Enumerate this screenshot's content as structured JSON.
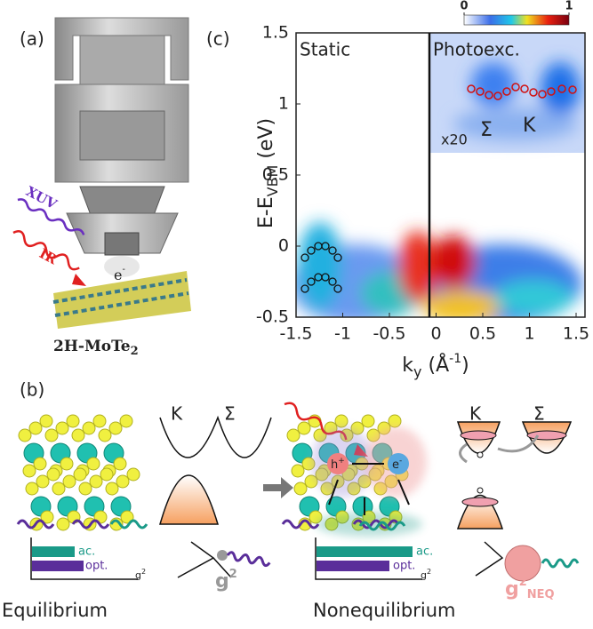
{
  "panel_a": {
    "label": "(a)",
    "xuv": "XUV",
    "ir": "IR",
    "electron": {
      "main": "e",
      "sup": "-"
    },
    "sample": {
      "main": "2H-MoTe",
      "sub": "2"
    }
  },
  "panel_b": {
    "label": "(b)",
    "left": {
      "k": "K",
      "sigma": "Σ",
      "ac": "ac.",
      "opt": "opt.",
      "g2_axis": {
        "main": "g",
        "sup": "2"
      },
      "g2": {
        "main": "g",
        "sup": "2"
      },
      "caption": "Equilibrium"
    },
    "right": {
      "k": "K",
      "sigma": "Σ",
      "hole": {
        "main": "h",
        "sup": "+"
      },
      "electron": {
        "main": "e",
        "sup": "-"
      },
      "ac": "ac.",
      "opt": "opt.",
      "g2_axis": {
        "main": "g",
        "sup": "2"
      },
      "g2": {
        "main": "g",
        "sup": "2",
        "sub": "NEQ"
      },
      "caption": "Nonequilibrium"
    }
  },
  "panel_c": {
    "label": "(c)",
    "static": "Static",
    "photoexc": "Photoexc.",
    "scale": "x20",
    "sigma": "Σ",
    "k": "K",
    "xlim": [
      -1.5,
      1.5
    ],
    "ylim": [
      -0.5,
      1.5
    ],
    "xticks": [
      -1.5,
      -1,
      -0.5,
      0,
      0.5,
      1,
      1.5
    ],
    "yticks": [
      -0.5,
      0,
      0.5,
      1,
      1.5
    ],
    "x_label": {
      "main": "k",
      "sub": "y",
      "unit": " (Å",
      "sup": "-1",
      "close": ")"
    },
    "y_label": {
      "main": "E-E",
      "sub": "VBM",
      "unit": " (eV)"
    },
    "colorbar": {
      "ticks": [
        0,
        1
      ]
    }
  }
}
